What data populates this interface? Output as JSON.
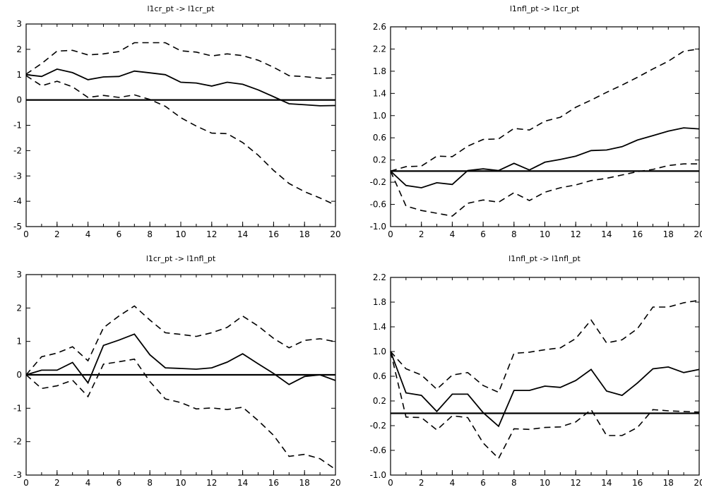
{
  "chart_data": [
    {
      "type": "line",
      "title": "l1cr_pt -> l1cr_pt",
      "x": [
        0,
        1,
        2,
        3,
        4,
        5,
        6,
        7,
        8,
        9,
        10,
        11,
        12,
        13,
        14,
        15,
        16,
        17,
        18,
        19,
        20
      ],
      "xticks": [
        0,
        2,
        4,
        6,
        8,
        10,
        12,
        14,
        16,
        18,
        20
      ],
      "xlim": [
        0,
        20
      ],
      "ylim": [
        -5,
        3
      ],
      "yticks": [
        -5,
        -4,
        -3,
        -2,
        -1,
        0,
        1,
        2,
        3
      ],
      "ytick_labels": [
        "-5",
        "-4",
        "-3",
        "-2",
        "-1",
        "0",
        "1",
        "2",
        "3"
      ],
      "series": [
        {
          "style": "solid",
          "values": [
            1.0,
            0.93,
            1.22,
            1.08,
            0.8,
            0.91,
            0.93,
            1.14,
            1.07,
            1.0,
            0.7,
            0.67,
            0.55,
            0.7,
            0.62,
            0.4,
            0.13,
            -0.15,
            -0.19,
            -0.23,
            -0.22
          ]
        },
        {
          "style": "dashed",
          "values": [
            1.02,
            1.44,
            1.93,
            1.96,
            1.78,
            1.82,
            1.91,
            2.26,
            2.26,
            2.26,
            1.94,
            1.89,
            1.74,
            1.82,
            1.75,
            1.57,
            1.29,
            0.96,
            0.92,
            0.86,
            0.87
          ]
        },
        {
          "style": "dashed",
          "values": [
            0.96,
            0.56,
            0.74,
            0.52,
            0.1,
            0.18,
            0.1,
            0.2,
            0.02,
            -0.25,
            -0.7,
            -1.03,
            -1.31,
            -1.33,
            -1.68,
            -2.18,
            -2.78,
            -3.3,
            -3.62,
            -3.87,
            -4.15
          ]
        }
      ]
    },
    {
      "type": "line",
      "title": "l1nfl_pt -> l1cr_pt",
      "x": [
        0,
        1,
        2,
        3,
        4,
        5,
        6,
        7,
        8,
        9,
        10,
        11,
        12,
        13,
        14,
        15,
        16,
        17,
        18,
        19,
        20
      ],
      "xticks": [
        0,
        2,
        4,
        6,
        8,
        10,
        12,
        14,
        16,
        18,
        20
      ],
      "xlim": [
        0,
        20
      ],
      "ylim": [
        -1.0,
        2.6
      ],
      "yticks": [
        -1.0,
        -0.6,
        -0.2,
        0.2,
        0.6,
        1.0,
        1.4,
        1.8,
        2.2,
        2.6
      ],
      "ytick_labels": [
        "-1.0",
        "-0.6",
        "-0.2",
        "0.2",
        "0.6",
        "1.0",
        "1.4",
        "1.8",
        "2.2",
        "2.6"
      ],
      "series": [
        {
          "style": "solid",
          "values": [
            0.0,
            -0.26,
            -0.3,
            -0.21,
            -0.24,
            0.01,
            0.04,
            0.01,
            0.14,
            0.02,
            0.16,
            0.21,
            0.27,
            0.37,
            0.38,
            0.44,
            0.56,
            0.64,
            0.72,
            0.78,
            0.76
          ]
        },
        {
          "style": "dashed",
          "values": [
            0.0,
            0.08,
            0.09,
            0.27,
            0.26,
            0.45,
            0.57,
            0.58,
            0.77,
            0.74,
            0.9,
            0.97,
            1.15,
            1.28,
            1.42,
            1.55,
            1.69,
            1.84,
            1.98,
            2.16,
            2.2
          ]
        },
        {
          "style": "dashed",
          "values": [
            0.0,
            -0.63,
            -0.71,
            -0.76,
            -0.81,
            -0.58,
            -0.52,
            -0.56,
            -0.39,
            -0.53,
            -0.38,
            -0.3,
            -0.25,
            -0.17,
            -0.13,
            -0.07,
            -0.01,
            0.03,
            0.1,
            0.13,
            0.13
          ]
        }
      ]
    },
    {
      "type": "line",
      "title": "l1cr_pt -> l1nfl_pt",
      "x": [
        0,
        1,
        2,
        3,
        4,
        5,
        6,
        7,
        8,
        9,
        10,
        11,
        12,
        13,
        14,
        15,
        16,
        17,
        18,
        19,
        20
      ],
      "xticks": [
        0,
        2,
        4,
        6,
        8,
        10,
        12,
        14,
        16,
        18,
        20
      ],
      "xlim": [
        0,
        20
      ],
      "ylim": [
        -3,
        3
      ],
      "yticks": [
        -3,
        -2,
        -1,
        0,
        1,
        2,
        3
      ],
      "ytick_labels": [
        "-3",
        "-2",
        "-1",
        "0",
        "1",
        "2",
        "3"
      ],
      "series": [
        {
          "style": "solid",
          "values": [
            0.0,
            0.14,
            0.14,
            0.37,
            -0.24,
            0.88,
            1.04,
            1.22,
            0.6,
            0.21,
            0.19,
            0.17,
            0.21,
            0.38,
            0.63,
            0.33,
            0.04,
            -0.29,
            -0.05,
            0.0,
            -0.17
          ]
        },
        {
          "style": "dashed",
          "values": [
            0.0,
            0.54,
            0.65,
            0.84,
            0.42,
            1.41,
            1.76,
            2.06,
            1.64,
            1.26,
            1.21,
            1.15,
            1.26,
            1.42,
            1.76,
            1.46,
            1.09,
            0.81,
            1.03,
            1.08,
            0.99
          ]
        },
        {
          "style": "dashed",
          "values": [
            0.0,
            -0.41,
            -0.33,
            -0.16,
            -0.65,
            0.32,
            0.39,
            0.47,
            -0.2,
            -0.72,
            -0.83,
            -1.02,
            -0.99,
            -1.04,
            -0.97,
            -1.37,
            -1.81,
            -2.44,
            -2.38,
            -2.51,
            -2.83
          ]
        }
      ]
    },
    {
      "type": "line",
      "title": "l1nfl_pt -> l1nfl_pt",
      "x": [
        0,
        1,
        2,
        3,
        4,
        5,
        6,
        7,
        8,
        9,
        10,
        11,
        12,
        13,
        14,
        15,
        16,
        17,
        18,
        19,
        20
      ],
      "xticks": [
        0,
        2,
        4,
        6,
        8,
        10,
        12,
        14,
        16,
        18,
        20
      ],
      "xlim": [
        0,
        20
      ],
      "ylim": [
        -1.0,
        2.2
      ],
      "yticks": [
        -1.0,
        -0.6,
        -0.2,
        0.2,
        0.6,
        1.0,
        1.4,
        1.8,
        2.2
      ],
      "ytick_labels": [
        "-1.0",
        "-0.6",
        "-0.2",
        "0.2",
        "0.6",
        "1.0",
        "1.4",
        "1.8",
        "2.2"
      ],
      "series": [
        {
          "style": "solid",
          "values": [
            1.0,
            0.33,
            0.29,
            0.03,
            0.31,
            0.31,
            0.01,
            -0.21,
            0.37,
            0.37,
            0.44,
            0.42,
            0.53,
            0.71,
            0.36,
            0.29,
            0.49,
            0.72,
            0.75,
            0.66,
            0.71
          ]
        },
        {
          "style": "dashed",
          "values": [
            1.0,
            0.72,
            0.62,
            0.39,
            0.62,
            0.66,
            0.45,
            0.34,
            0.97,
            0.99,
            1.03,
            1.06,
            1.21,
            1.51,
            1.14,
            1.19,
            1.37,
            1.72,
            1.72,
            1.79,
            1.83
          ]
        },
        {
          "style": "dashed",
          "values": [
            1.0,
            -0.06,
            -0.07,
            -0.27,
            -0.04,
            -0.07,
            -0.48,
            -0.73,
            -0.25,
            -0.26,
            -0.23,
            -0.22,
            -0.14,
            0.06,
            -0.36,
            -0.36,
            -0.23,
            0.06,
            0.04,
            0.03,
            0.02
          ]
        }
      ]
    }
  ]
}
